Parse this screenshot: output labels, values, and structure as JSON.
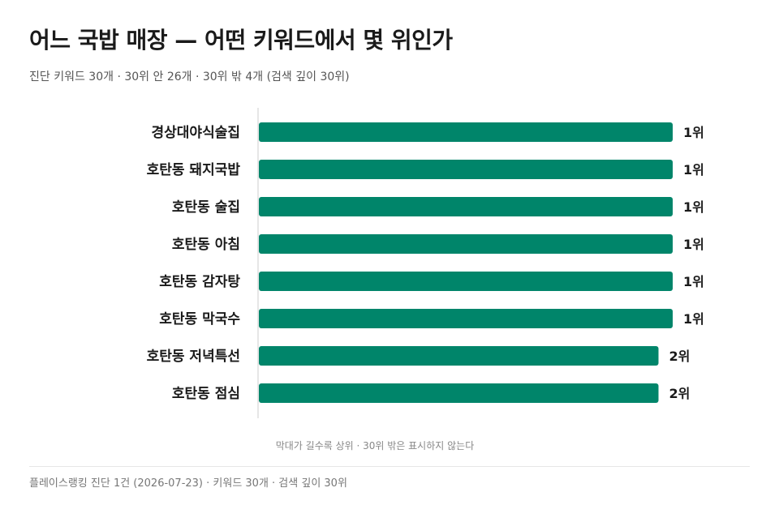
{
  "header": {
    "title": "어느 국밥 매장 — 어떤 키워드에서 몇 위인가",
    "subtitle": "진단 키워드 30개 · 30위 안 26개 · 30위 밖 4개 (검색 깊이 30위)"
  },
  "note": "막대가 길수록 상위 · 30위 밖은 표시하지 않는다",
  "footer": "플레이스랭킹 진단 1건 (2026-07-23) · 키워드 30개 · 검색 깊이 30위",
  "colors": {
    "bar": "#00856a",
    "axis": "#cccccc"
  },
  "chart_data": {
    "type": "bar",
    "orientation": "horizontal",
    "categories": [
      "경상대야식술집",
      "호탄동 돼지국밥",
      "호탄동 술집",
      "호탄동 아침",
      "호탄동 감자탕",
      "호탄동 막국수",
      "호탄동 저녁특선",
      "호탄동 점심"
    ],
    "values": [
      1,
      1,
      1,
      1,
      1,
      1,
      2,
      2
    ],
    "value_labels": [
      "1위",
      "1위",
      "1위",
      "1위",
      "1위",
      "1위",
      "2위",
      "2위"
    ],
    "max_rank": 30
  }
}
